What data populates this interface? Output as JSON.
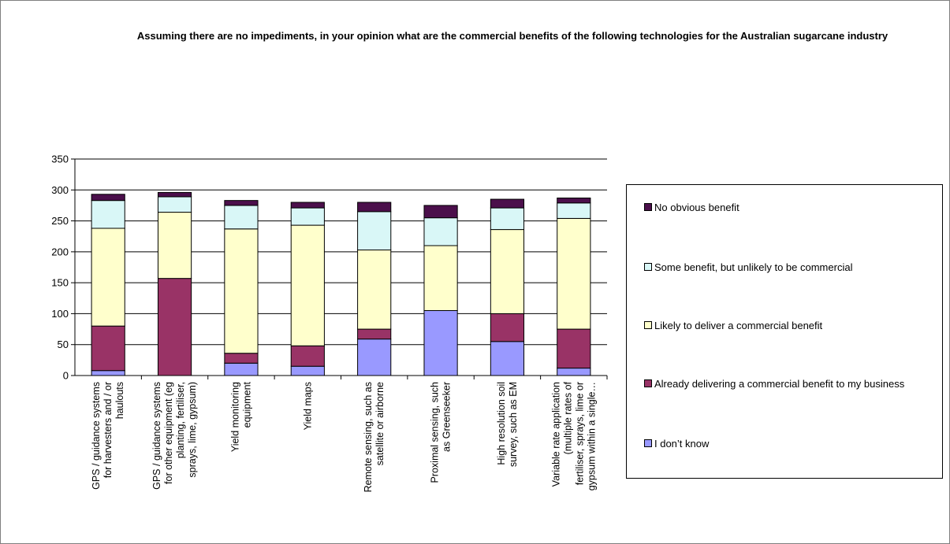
{
  "title": "Assuming there are no impediments, in your opinion what are the commercial benefits of the following technologies for the Australian sugarcane industry",
  "legend": [
    {
      "label": "No obvious benefit",
      "color": "#4b0f4b"
    },
    {
      "label": "Some benefit, but unlikely to be commercial",
      "color": "#d9f7f7"
    },
    {
      "label": "Likely to deliver a commercial benefit",
      "color": "#ffffcc"
    },
    {
      "label": "Already delivering a commercial benefit to my business",
      "color": "#993366"
    },
    {
      "label": "I don’t know",
      "color": "#9999ff"
    }
  ],
  "chart_data": {
    "type": "bar",
    "stacked": true,
    "title": "Assuming there are no impediments, in your opinion what are the commercial benefits of the following technologies for the Australian sugarcane industry",
    "categories": [
      [
        "GPS / guidance systems",
        "for harvesters and / or",
        "haulouts"
      ],
      [
        "GPS / guidance systems",
        "for other equipment (eg",
        "planting, fertiliser,",
        "sprays, lime, gypsum)"
      ],
      [
        "Yield monitoring",
        "equipment"
      ],
      [
        "Yield maps"
      ],
      [
        "Remote sensing, such as",
        "satellite or airborne"
      ],
      [
        "Proximal sensing, such",
        "as Greenseeker"
      ],
      [
        "High resolution soil",
        "survey, such as EM"
      ],
      [
        "Variable rate application",
        "(multiple rates of",
        "fertiliser, sprays, lime or",
        "gypsum within a single…"
      ]
    ],
    "series": [
      {
        "name": "I don’t know",
        "color": "#9999ff",
        "values": [
          8,
          0,
          20,
          15,
          59,
          105,
          55,
          12
        ]
      },
      {
        "name": "Already delivering a commercial benefit to my business",
        "color": "#993366",
        "values": [
          72,
          157,
          16,
          33,
          16,
          0,
          45,
          63
        ]
      },
      {
        "name": "Likely to deliver a commercial benefit",
        "color": "#ffffcc",
        "values": [
          158,
          107,
          201,
          195,
          128,
          105,
          136,
          179
        ]
      },
      {
        "name": "Some benefit, but unlikely to be commercial",
        "color": "#d9f7f7",
        "values": [
          45,
          25,
          38,
          28,
          62,
          45,
          35,
          25
        ]
      },
      {
        "name": "No obvious benefit",
        "color": "#4b0f4b",
        "values": [
          10,
          7,
          8,
          9,
          15,
          20,
          14,
          8
        ]
      }
    ],
    "yticks": [
      0,
      50,
      100,
      150,
      200,
      250,
      300,
      350
    ],
    "ylim": [
      0,
      350
    ],
    "grid": true,
    "legend_position": "right"
  }
}
